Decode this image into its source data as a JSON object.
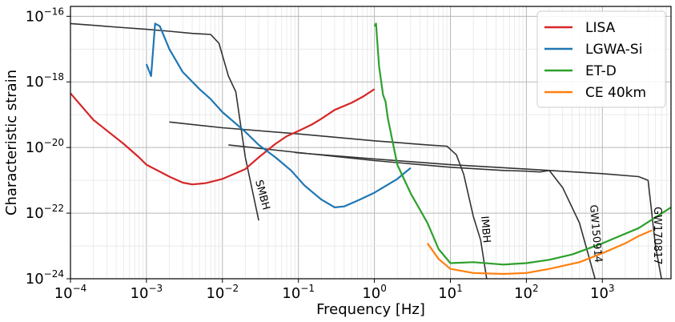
{
  "chart_data": {
    "type": "line",
    "xscale": "log",
    "yscale": "log",
    "xlim": [
      0.0001,
      8000
    ],
    "ylim": [
      1e-24,
      2e-16
    ],
    "xlabel": "Frequency [Hz]",
    "ylabel": "Characteristic strain",
    "grid": true,
    "legend_position": "top-right",
    "x_ticks": [
      {
        "base": "10",
        "exp": "−4",
        "value": 0.0001
      },
      {
        "base": "10",
        "exp": "−3",
        "value": 0.001
      },
      {
        "base": "10",
        "exp": "−2",
        "value": 0.01
      },
      {
        "base": "10",
        "exp": "−1",
        "value": 0.1
      },
      {
        "base": "10",
        "exp": "0",
        "value": 1
      },
      {
        "base": "10",
        "exp": "1",
        "value": 10
      },
      {
        "base": "10",
        "exp": "2",
        "value": 100
      },
      {
        "base": "10",
        "exp": "3",
        "value": 1000
      }
    ],
    "y_ticks": [
      {
        "base": "10",
        "exp": "−24",
        "value": 1e-24
      },
      {
        "base": "10",
        "exp": "−22",
        "value": 1e-22
      },
      {
        "base": "10",
        "exp": "−20",
        "value": 1e-20
      },
      {
        "base": "10",
        "exp": "−18",
        "value": 1e-18
      },
      {
        "base": "10",
        "exp": "−16",
        "value": 1e-16
      }
    ],
    "series": [
      {
        "name": "LISA",
        "color": "#d62728",
        "points": [
          [
            0.0001,
            4.5e-19
          ],
          [
            0.0002,
            7e-20
          ],
          [
            0.0005,
            1.3e-20
          ],
          [
            0.0008,
            5e-21
          ],
          [
            0.001,
            3e-21
          ],
          [
            0.002,
            1.3e-21
          ],
          [
            0.003,
            8.5e-22
          ],
          [
            0.004,
            7.5e-22
          ],
          [
            0.006,
            8.2e-22
          ],
          [
            0.01,
            1.1e-21
          ],
          [
            0.02,
            2.2e-21
          ],
          [
            0.03,
            5e-21
          ],
          [
            0.05,
            1.3e-20
          ],
          [
            0.07,
            2.2e-20
          ],
          [
            0.1,
            3.2e-20
          ],
          [
            0.15,
            5e-20
          ],
          [
            0.2,
            7.5e-20
          ],
          [
            0.3,
            1.4e-19
          ],
          [
            0.5,
            2.3e-19
          ],
          [
            0.7,
            3.5e-19
          ],
          [
            1.0,
            6e-19
          ]
        ]
      },
      {
        "name": "LGWA-Si",
        "color": "#1f77b4",
        "points": [
          [
            0.001,
            3.5e-18
          ],
          [
            0.00115,
            1.5e-18
          ],
          [
            0.0013,
            6e-17
          ],
          [
            0.0015,
            5e-17
          ],
          [
            0.002,
            1e-17
          ],
          [
            0.003,
            2e-18
          ],
          [
            0.005,
            6e-19
          ],
          [
            0.007,
            3e-19
          ],
          [
            0.01,
            1.2e-19
          ],
          [
            0.02,
            3e-20
          ],
          [
            0.03,
            1.2e-20
          ],
          [
            0.05,
            5e-21
          ],
          [
            0.08,
            2e-21
          ],
          [
            0.12,
            7e-22
          ],
          [
            0.2,
            2.6e-22
          ],
          [
            0.3,
            1.5e-22
          ],
          [
            0.4,
            1.6e-22
          ],
          [
            0.6,
            2.4e-22
          ],
          [
            1.0,
            4.2e-22
          ],
          [
            2.0,
            1.1e-21
          ],
          [
            3.0,
            2.4e-21
          ]
        ]
      },
      {
        "name": "ET-D",
        "color": "#2ca02c",
        "points": [
          [
            1.0,
            5e-17
          ],
          [
            1.05,
            6e-17
          ],
          [
            1.15,
            3e-18
          ],
          [
            1.3,
            4e-19
          ],
          [
            1.4,
            2.5e-19
          ],
          [
            1.5,
            8e-20
          ],
          [
            2.0,
            3e-21
          ],
          [
            3.0,
            4e-22
          ],
          [
            5.0,
            5e-23
          ],
          [
            7.0,
            8e-24
          ],
          [
            10,
            3e-24
          ],
          [
            20,
            3.2e-24
          ],
          [
            50,
            2.7e-24
          ],
          [
            100,
            3e-24
          ],
          [
            200,
            3.8e-24
          ],
          [
            400,
            5.5e-24
          ],
          [
            1000,
            1.2e-23
          ],
          [
            3000,
            3.5e-23
          ],
          [
            8000,
            1.5e-22
          ]
        ]
      },
      {
        "name": "CE 40km",
        "color": "#ff7f0e",
        "points": [
          [
            5.0,
            1.2e-23
          ],
          [
            7.0,
            4e-24
          ],
          [
            10,
            2e-24
          ],
          [
            20,
            1.5e-24
          ],
          [
            50,
            1.4e-24
          ],
          [
            100,
            1.5e-24
          ],
          [
            200,
            2e-24
          ],
          [
            500,
            3.2e-24
          ],
          [
            1000,
            6e-24
          ],
          [
            2000,
            1.2e-23
          ],
          [
            3000,
            2e-23
          ],
          [
            4500,
            3e-23
          ]
        ]
      }
    ],
    "source_curves": [
      {
        "name": "SMBH",
        "color": "#333333",
        "points": [
          [
            0.0001,
            6e-17
          ],
          [
            0.0005,
            4.5e-17
          ],
          [
            0.001,
            4e-17
          ],
          [
            0.002,
            3.5e-17
          ],
          [
            0.004,
            3e-17
          ],
          [
            0.007,
            2.8e-17
          ],
          [
            0.009,
            1.5e-17
          ],
          [
            0.012,
            1.5e-18
          ],
          [
            0.015,
            5e-19
          ],
          [
            0.02,
            5e-21
          ],
          [
            0.03,
            6e-23
          ]
        ]
      },
      {
        "name": "IMBH",
        "color": "#333333",
        "points": [
          [
            0.002,
            6e-20
          ],
          [
            0.01,
            4e-20
          ],
          [
            0.1,
            2.6e-20
          ],
          [
            1.0,
            1.6e-20
          ],
          [
            5.0,
            1.2e-20
          ],
          [
            9.0,
            1.1e-20
          ],
          [
            12,
            6e-21
          ],
          [
            15,
            1.5e-21
          ],
          [
            20,
            8e-23
          ],
          [
            25,
            1.5e-23
          ],
          [
            30,
            1e-24
          ]
        ]
      },
      {
        "name": "GW150914",
        "color": "#333333",
        "points": [
          [
            0.012,
            1.2e-20
          ],
          [
            0.1,
            7e-21
          ],
          [
            1.0,
            4e-21
          ],
          [
            10,
            2.5e-21
          ],
          [
            50,
            2e-21
          ],
          [
            100,
            1.9e-21
          ],
          [
            150,
            1.8e-21
          ],
          [
            200,
            2e-21
          ],
          [
            300,
            6e-22
          ],
          [
            500,
            5e-23
          ],
          [
            800,
            1e-24
          ]
        ]
      },
      {
        "name": "GW170817",
        "color": "#333333",
        "points": [
          [
            0.09,
            7e-21
          ],
          [
            1.0,
            4.5e-21
          ],
          [
            10,
            3e-21
          ],
          [
            100,
            2.2e-21
          ],
          [
            1000,
            1.6e-21
          ],
          [
            3000,
            1.3e-21
          ],
          [
            4000,
            1e-21
          ],
          [
            5000,
            1e-23
          ],
          [
            6000,
            1e-24
          ]
        ]
      }
    ],
    "legend": [
      {
        "label": "LISA",
        "color": "#d62728"
      },
      {
        "label": "LGWA-Si",
        "color": "#1f77b4"
      },
      {
        "label": "ET-D",
        "color": "#2ca02c"
      },
      {
        "label": "CE 40km",
        "color": "#ff7f0e"
      }
    ]
  }
}
